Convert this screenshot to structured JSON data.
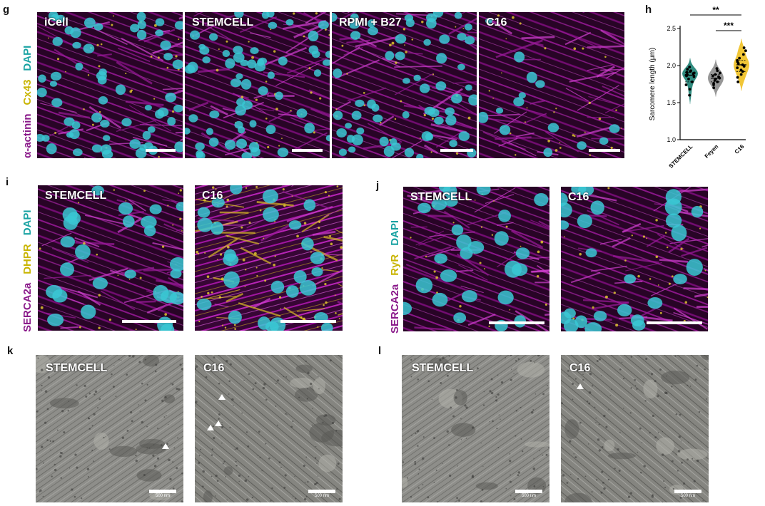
{
  "panels": {
    "g": {
      "letter": "g",
      "stain": [
        {
          "text": "DAPI",
          "color": "#1aa3a3"
        },
        {
          "text": "Cx43",
          "color": "#c8b400"
        },
        {
          "text": "α-actinin",
          "color": "#8a1a8a"
        }
      ],
      "images": [
        "iCell",
        "STEMCELL",
        "RPMI + B27",
        "C16"
      ]
    },
    "h": {
      "letter": "h"
    },
    "i": {
      "letter": "i",
      "stain": [
        {
          "text": "DAPI",
          "color": "#1aa3a3"
        },
        {
          "text": "DHPR",
          "color": "#c8b400"
        },
        {
          "text": "SERCA2a",
          "color": "#8a1a8a"
        }
      ],
      "images": [
        "STEMCELL",
        "C16"
      ]
    },
    "j": {
      "letter": "j",
      "stain": [
        {
          "text": "DAPI",
          "color": "#1aa3a3"
        },
        {
          "text": "RyR",
          "color": "#c8b400"
        },
        {
          "text": "SERCA2a",
          "color": "#8a1a8a"
        }
      ],
      "images": [
        "STEMCELL",
        "C16"
      ]
    },
    "k": {
      "letter": "k",
      "images": [
        "STEMCELL",
        "C16"
      ],
      "scale": "500 nm"
    },
    "l": {
      "letter": "l",
      "images": [
        "STEMCELL",
        "C16"
      ],
      "scale": "500 nm"
    }
  },
  "colors": {
    "magenta": "#c020c0",
    "cyan": "#35c8d8",
    "yellow": "#d8c020",
    "dark": "#1b0318"
  },
  "chart_data": {
    "type": "violin",
    "categories": [
      "STEMCELL",
      "Feyen",
      "C16"
    ],
    "ylabel": "Sarcomere length (μm)",
    "ylim": [
      1.0,
      2.5
    ],
    "yticks": [
      "1.0",
      "1.5",
      "2.0",
      "2.5"
    ],
    "series": [
      {
        "name": "STEMCELL",
        "color": "#1b7f72",
        "values": [
          1.6,
          1.68,
          1.74,
          1.78,
          1.82,
          1.85,
          1.86,
          1.87,
          1.88,
          1.89,
          1.9,
          1.91,
          1.92,
          1.93,
          1.95,
          1.98
        ]
      },
      {
        "name": "Feyen",
        "color": "#8c8c8c",
        "values": [
          1.7,
          1.74,
          1.76,
          1.78,
          1.8,
          1.82,
          1.83,
          1.85,
          1.86,
          1.88,
          1.9,
          1.93,
          1.96
        ]
      },
      {
        "name": "C16",
        "color": "#f0c020",
        "values": [
          1.78,
          1.84,
          1.88,
          1.92,
          1.94,
          1.97,
          1.99,
          2.01,
          2.03,
          2.05,
          2.07,
          2.1,
          2.15,
          2.2,
          2.24
        ]
      }
    ],
    "significance": [
      {
        "from": "STEMCELL",
        "to": "C16",
        "label": "**"
      },
      {
        "from": "Feyen",
        "to": "C16",
        "label": "***"
      }
    ]
  }
}
